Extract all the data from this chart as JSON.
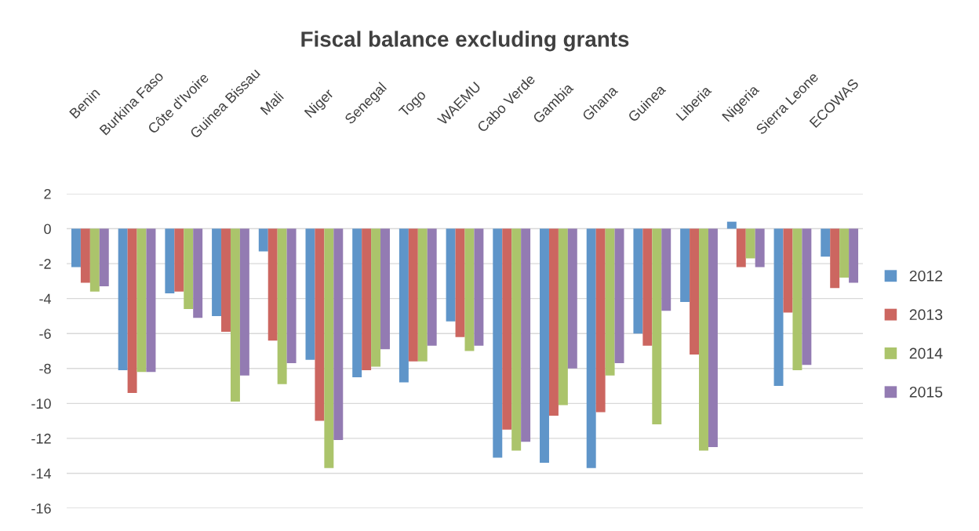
{
  "chart_data": {
    "type": "bar",
    "title": "Fiscal balance excluding grants",
    "categories": [
      "Benin",
      "Burkina Faso",
      "Côte d'Ivoire",
      "Guinea Bissau",
      "Mali",
      "Niger",
      "Senegal",
      "Togo",
      "WAEMU",
      "Cabo Verde",
      "Gambia",
      "Ghana",
      "Guinea",
      "Liberia",
      "Nigeria",
      "Sierra Leone",
      "ECOWAS"
    ],
    "series": [
      {
        "name": "2012",
        "color": "#5f95c9",
        "values": [
          -2.2,
          -8.1,
          -3.7,
          -5.0,
          -1.3,
          -7.5,
          -8.5,
          -8.8,
          -5.3,
          -13.1,
          -13.4,
          -13.7,
          -6.0,
          -4.2,
          0.4,
          -9.0,
          -1.6
        ]
      },
      {
        "name": "2013",
        "color": "#cc6660",
        "values": [
          -3.1,
          -9.4,
          -3.6,
          -5.9,
          -6.4,
          -11.0,
          -8.1,
          -7.6,
          -6.2,
          -11.5,
          -10.7,
          -10.5,
          -6.7,
          -7.2,
          -2.2,
          -4.8,
          -3.4
        ]
      },
      {
        "name": "2014",
        "color": "#abc46b",
        "values": [
          -3.6,
          -8.2,
          -4.6,
          -9.9,
          -8.9,
          -13.7,
          -7.9,
          -7.6,
          -7.0,
          -12.7,
          -10.1,
          -8.4,
          -11.2,
          -12.7,
          -1.7,
          -8.1,
          -2.8
        ]
      },
      {
        "name": "2015",
        "color": "#937bb2",
        "values": [
          -3.3,
          -8.2,
          -5.1,
          -8.4,
          -7.7,
          -12.1,
          -6.9,
          -6.7,
          -6.7,
          -12.2,
          -8.0,
          -7.7,
          -4.7,
          -12.5,
          -2.2,
          -7.8,
          -3.1
        ]
      }
    ],
    "ylim": [
      -16,
      2
    ],
    "yticks": [
      -16,
      -14,
      -12,
      -10,
      -8,
      -6,
      -4,
      -2,
      0,
      2
    ],
    "grid": "y",
    "legend": "right"
  }
}
